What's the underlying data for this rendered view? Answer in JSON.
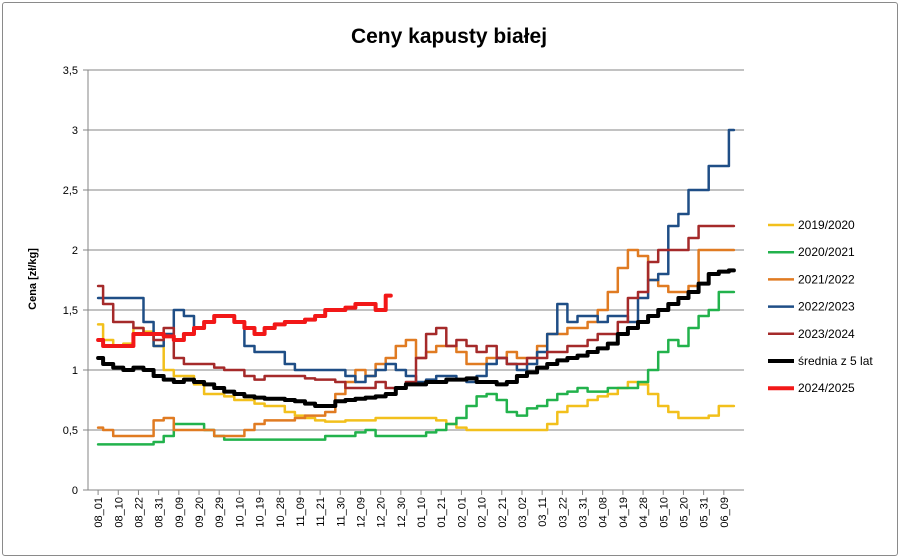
{
  "chart_data": {
    "type": "line",
    "title": "Ceny kapusty białej",
    "xlabel": "",
    "ylabel": "Cena [zł/kg]",
    "ylim": [
      0,
      3.5
    ],
    "yticks": [
      "0",
      "0,5",
      "1",
      "1,5",
      "2",
      "2,5",
      "3",
      "3,5"
    ],
    "grid": "horizontal",
    "legend_position": "right",
    "categories": [
      "08_01",
      "08_10",
      "08_22",
      "08_31",
      "09_09",
      "09_20",
      "09_29",
      "10_10",
      "10_19",
      "10_28",
      "11_09",
      "11_21",
      "11_30",
      "12_09",
      "12_20",
      "12_30",
      "01_10",
      "01_21",
      "02_01",
      "02_10",
      "02_21",
      "03_02",
      "03_11",
      "03_22",
      "03_31",
      "04_08",
      "04_19",
      "04_28",
      "05_10",
      "05_20",
      "05_31",
      "06_09"
    ],
    "series": [
      {
        "name": "2019/2020",
        "color": "#F2C01C",
        "width": 2.5,
        "x": [
          0,
          0.5,
          1,
          1.5,
          2,
          2.5,
          3,
          3.5,
          4,
          4.5,
          5,
          5.5,
          6,
          6.5,
          7,
          7.5,
          8,
          8.5,
          9,
          9.5,
          10,
          10.5,
          11,
          11.5,
          12,
          12.5,
          13,
          13.5,
          14,
          14.5,
          15,
          15.5,
          16,
          16.5,
          17,
          17.5,
          18,
          18.5,
          19,
          19.5,
          20,
          20.5,
          21,
          21.5,
          22,
          22.5,
          23,
          23.5,
          24,
          24.5,
          25,
          25.5,
          26,
          26.5,
          27,
          27.5,
          28,
          28.5,
          29,
          29.5,
          30,
          30.5,
          31,
          31.5
        ],
        "values": [
          1.38,
          1.25,
          1.2,
          1.22,
          1.35,
          1.32,
          1.2,
          1.0,
          0.95,
          0.95,
          0.88,
          0.8,
          0.8,
          0.78,
          0.75,
          0.75,
          0.72,
          0.7,
          0.7,
          0.65,
          0.62,
          0.6,
          0.58,
          0.57,
          0.57,
          0.58,
          0.58,
          0.58,
          0.6,
          0.6,
          0.6,
          0.6,
          0.6,
          0.6,
          0.58,
          0.55,
          0.52,
          0.5,
          0.5,
          0.5,
          0.5,
          0.5,
          0.5,
          0.5,
          0.5,
          0.55,
          0.65,
          0.7,
          0.7,
          0.75,
          0.78,
          0.8,
          0.85,
          0.9,
          0.88,
          0.8,
          0.7,
          0.65,
          0.6,
          0.6,
          0.6,
          0.62,
          0.7,
          0.7
        ]
      },
      {
        "name": "2020/2021",
        "color": "#22B24C",
        "width": 2.5,
        "x": [
          0,
          0.5,
          1,
          1.5,
          2,
          2.5,
          3,
          3.5,
          4,
          4.5,
          5,
          5.5,
          6,
          6.5,
          7,
          7.5,
          8,
          8.5,
          9,
          9.5,
          10,
          10.5,
          11,
          11.5,
          12,
          12.5,
          13,
          13.5,
          14,
          14.5,
          15,
          15.5,
          16,
          16.5,
          17,
          17.5,
          18,
          18.5,
          19,
          19.5,
          20,
          20.5,
          21,
          21.5,
          22,
          22.5,
          23,
          23.5,
          24,
          24.5,
          25,
          25.5,
          26,
          26.5,
          27,
          27.5,
          28,
          28.5,
          29,
          29.5,
          30,
          30.5,
          31,
          31.5
        ],
        "values": [
          0.38,
          0.38,
          0.38,
          0.38,
          0.38,
          0.38,
          0.4,
          0.45,
          0.55,
          0.55,
          0.55,
          0.5,
          0.45,
          0.42,
          0.42,
          0.42,
          0.42,
          0.42,
          0.42,
          0.42,
          0.42,
          0.42,
          0.42,
          0.45,
          0.45,
          0.45,
          0.48,
          0.5,
          0.45,
          0.45,
          0.45,
          0.45,
          0.45,
          0.48,
          0.5,
          0.55,
          0.6,
          0.7,
          0.78,
          0.8,
          0.75,
          0.65,
          0.62,
          0.68,
          0.7,
          0.75,
          0.8,
          0.82,
          0.85,
          0.82,
          0.82,
          0.85,
          0.85,
          0.85,
          0.9,
          1.0,
          1.15,
          1.25,
          1.2,
          1.35,
          1.45,
          1.5,
          1.65,
          1.65
        ]
      },
      {
        "name": "2021/2022",
        "color": "#E07B22",
        "width": 2.5,
        "x": [
          0,
          0.5,
          1,
          1.5,
          2,
          2.5,
          3,
          3.5,
          4,
          4.5,
          5,
          5.5,
          6,
          6.5,
          7,
          7.5,
          8,
          8.5,
          9,
          9.5,
          10,
          10.5,
          11,
          11.5,
          12,
          12.5,
          13,
          13.5,
          14,
          14.5,
          15,
          15.5,
          16,
          16.5,
          17,
          17.5,
          18,
          18.5,
          19,
          19.5,
          20,
          20.5,
          21,
          21.5,
          22,
          22.5,
          23,
          23.5,
          24,
          24.5,
          25,
          25.5,
          26,
          26.5,
          27,
          27.5,
          28,
          28.5,
          29,
          29.5,
          30,
          30.5,
          31,
          31.5
        ],
        "values": [
          0.52,
          0.5,
          0.45,
          0.45,
          0.45,
          0.45,
          0.58,
          0.6,
          0.5,
          0.5,
          0.5,
          0.5,
          0.45,
          0.45,
          0.45,
          0.5,
          0.55,
          0.58,
          0.58,
          0.58,
          0.6,
          0.62,
          0.62,
          0.65,
          0.8,
          0.9,
          1.0,
          0.95,
          1.05,
          1.1,
          1.2,
          1.25,
          1.1,
          1.15,
          1.2,
          1.2,
          1.15,
          1.05,
          1.05,
          1.1,
          1.1,
          1.15,
          1.1,
          1.1,
          1.2,
          1.3,
          1.3,
          1.35,
          1.35,
          1.4,
          1.5,
          1.65,
          1.85,
          2.0,
          1.95,
          1.75,
          1.7,
          1.65,
          1.65,
          1.7,
          2.0,
          2.0,
          2.0,
          2.0
        ]
      },
      {
        "name": "2022/2023",
        "color": "#1F4E86",
        "width": 2.5,
        "x": [
          0,
          0.5,
          1,
          1.5,
          2,
          2.5,
          3,
          3.5,
          4,
          4.5,
          5,
          5.5,
          6,
          6.5,
          7,
          7.5,
          8,
          8.5,
          9,
          9.5,
          10,
          10.5,
          11,
          11.5,
          12,
          12.5,
          13,
          13.5,
          14,
          14.5,
          15,
          15.5,
          16,
          16.5,
          17,
          17.5,
          18,
          18.5,
          19,
          19.5,
          20,
          20.5,
          21,
          21.5,
          22,
          22.5,
          23,
          23.5,
          24,
          24.5,
          25,
          25.5,
          26,
          26.5,
          27,
          27.5,
          28,
          28.5,
          29,
          29.5,
          30,
          30.5,
          31,
          31.5
        ],
        "values": [
          1.6,
          1.6,
          1.6,
          1.6,
          1.6,
          1.4,
          1.2,
          1.3,
          1.5,
          1.45,
          1.35,
          1.4,
          1.45,
          1.45,
          1.4,
          1.2,
          1.15,
          1.15,
          1.15,
          1.05,
          1.0,
          1.0,
          1.0,
          1.0,
          1.0,
          0.95,
          0.9,
          0.95,
          1.0,
          1.05,
          1.0,
          0.95,
          0.9,
          0.92,
          0.95,
          0.95,
          0.92,
          0.9,
          0.95,
          1.05,
          1.1,
          1.05,
          1.0,
          1.05,
          1.15,
          1.3,
          1.55,
          1.4,
          1.45,
          1.45,
          1.4,
          1.45,
          1.45,
          1.4,
          1.6,
          1.75,
          1.8,
          2.2,
          2.3,
          2.5,
          2.5,
          2.7,
          2.7,
          3.0
        ]
      },
      {
        "name": "2023/2024",
        "color": "#A52A2A",
        "width": 2.5,
        "x": [
          0,
          0.5,
          1,
          1.5,
          2,
          2.5,
          3,
          3.5,
          4,
          4.5,
          5,
          5.5,
          6,
          6.5,
          7,
          7.5,
          8,
          8.5,
          9,
          9.5,
          10,
          10.5,
          11,
          11.5,
          12,
          12.5,
          13,
          13.5,
          14,
          14.5,
          15,
          15.5,
          16,
          16.5,
          17,
          17.5,
          18,
          18.5,
          19,
          19.5,
          20,
          20.5,
          21,
          21.5,
          22,
          22.5,
          23,
          23.5,
          24,
          24.5,
          25,
          25.5,
          26,
          26.5,
          27,
          27.5,
          28,
          28.5,
          29,
          29.5,
          30,
          30.5,
          31,
          31.5
        ],
        "values": [
          1.7,
          1.55,
          1.4,
          1.4,
          1.35,
          1.3,
          1.25,
          1.35,
          1.1,
          1.05,
          1.05,
          1.05,
          1.02,
          1.0,
          1.0,
          0.95,
          0.92,
          0.95,
          0.95,
          0.95,
          0.95,
          0.93,
          0.92,
          0.92,
          0.9,
          0.85,
          0.85,
          0.85,
          0.9,
          0.85,
          0.85,
          0.9,
          1.1,
          1.3,
          1.35,
          1.2,
          1.25,
          1.2,
          1.15,
          1.2,
          1.1,
          1.05,
          1.05,
          1.1,
          1.1,
          1.15,
          1.15,
          1.2,
          1.2,
          1.25,
          1.3,
          1.3,
          1.4,
          1.6,
          1.65,
          1.9,
          2.0,
          2.0,
          2.0,
          2.1,
          2.2,
          2.2,
          2.2,
          2.2
        ]
      },
      {
        "name": "średnia z 5 lat",
        "color": "#000000",
        "width": 4,
        "x": [
          0,
          0.5,
          1,
          1.5,
          2,
          2.5,
          3,
          3.5,
          4,
          4.5,
          5,
          5.5,
          6,
          6.5,
          7,
          7.5,
          8,
          8.5,
          9,
          9.5,
          10,
          10.5,
          11,
          11.5,
          12,
          12.5,
          13,
          13.5,
          14,
          14.5,
          15,
          15.5,
          16,
          16.5,
          17,
          17.5,
          18,
          18.5,
          19,
          19.5,
          20,
          20.5,
          21,
          21.5,
          22,
          22.5,
          23,
          23.5,
          24,
          24.5,
          25,
          25.5,
          26,
          26.5,
          27,
          27.5,
          28,
          28.5,
          29,
          29.5,
          30,
          30.5,
          31,
          31.5
        ],
        "values": [
          1.1,
          1.05,
          1.02,
          1.0,
          1.02,
          1.0,
          0.95,
          0.92,
          0.9,
          0.92,
          0.9,
          0.88,
          0.85,
          0.82,
          0.8,
          0.78,
          0.77,
          0.76,
          0.76,
          0.75,
          0.74,
          0.72,
          0.7,
          0.7,
          0.74,
          0.75,
          0.76,
          0.77,
          0.78,
          0.8,
          0.85,
          0.88,
          0.88,
          0.9,
          0.9,
          0.92,
          0.92,
          0.93,
          0.9,
          0.9,
          0.88,
          0.9,
          0.95,
          0.98,
          1.02,
          1.05,
          1.08,
          1.1,
          1.12,
          1.15,
          1.18,
          1.22,
          1.3,
          1.35,
          1.4,
          1.45,
          1.5,
          1.55,
          1.6,
          1.65,
          1.72,
          1.8,
          1.82,
          1.83
        ]
      },
      {
        "name": "2024/2025",
        "color": "#F21818",
        "width": 4,
        "x": [
          0,
          0.5,
          1,
          1.5,
          2,
          2.5,
          3,
          3.5,
          4,
          4.5,
          5,
          5.5,
          6,
          6.5,
          7,
          7.5,
          8,
          8.5,
          9,
          9.5,
          10,
          10.5,
          11,
          11.5,
          12,
          12.5,
          13,
          13.5,
          14,
          14.5
        ],
        "values": [
          1.25,
          1.2,
          1.2,
          1.2,
          1.3,
          1.3,
          1.3,
          1.28,
          1.25,
          1.3,
          1.35,
          1.4,
          1.45,
          1.45,
          1.4,
          1.35,
          1.3,
          1.35,
          1.38,
          1.4,
          1.4,
          1.42,
          1.45,
          1.5,
          1.5,
          1.52,
          1.55,
          1.55,
          1.5,
          1.62
        ]
      }
    ]
  }
}
